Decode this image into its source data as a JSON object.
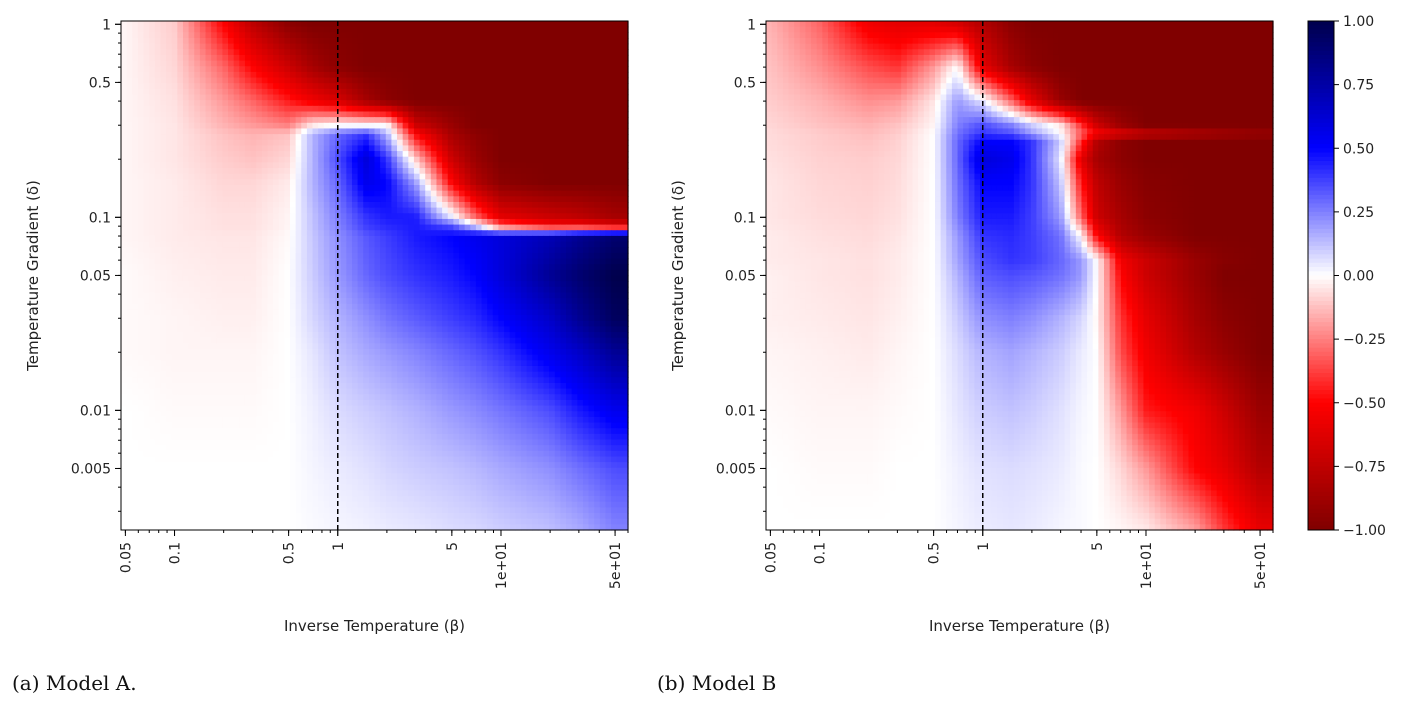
{
  "colormap": {
    "name": "seismic_r",
    "vmin": -1,
    "vmax": 1,
    "stops": [
      [
        -1,
        "#800000"
      ],
      [
        -0.5,
        "#ff0000"
      ],
      [
        0,
        "#ffffff"
      ],
      [
        0.5,
        "#0000ff"
      ],
      [
        1,
        "#00004c"
      ]
    ],
    "ticks": [
      1.0,
      0.75,
      0.5,
      0.25,
      0.0,
      -0.25,
      -0.5,
      -0.75,
      -1.0
    ],
    "tick_labels": [
      "1.00",
      "0.75",
      "0.50",
      "0.25",
      "0.00",
      "−0.25",
      "−0.50",
      "−0.75",
      "−1.00"
    ]
  },
  "chart_data": [
    {
      "type": "heatmap",
      "caption": "(a) Model A.",
      "xlabel": "Inverse Temperature (β)",
      "ylabel": "Temperature Gradient (δ)",
      "xscale": "log",
      "yscale": "log",
      "xlim": [
        0.047,
        60
      ],
      "ylim": [
        0.0024,
        1.04
      ],
      "xticks": [
        0.05,
        0.1,
        0.5,
        1,
        5,
        10,
        50
      ],
      "xtick_labels": [
        "0.05",
        "0.1",
        "0.5",
        "1",
        "5",
        "1e+01",
        "5e+01"
      ],
      "yticks": [
        1,
        0.5,
        0.1,
        0.05,
        0.01,
        0.005
      ],
      "ytick_labels": [
        "1",
        "0.5",
        "0.1",
        "0.05",
        "0.01",
        "0.005"
      ],
      "vline": {
        "x": 1,
        "style": "dashed",
        "color": "#000000"
      },
      "x": [
        0.05,
        0.1,
        0.2,
        0.3,
        0.5,
        0.7,
        1,
        1.5,
        2,
        3,
        5,
        7,
        10,
        20,
        30,
        50
      ],
      "y": [
        1,
        0.6,
        0.4,
        0.3,
        0.27,
        0.2,
        0.15,
        0.1,
        0.09,
        0.08,
        0.05,
        0.03,
        0.02,
        0.01,
        0.005,
        0.0025
      ],
      "z": [
        [
          -0.02,
          -0.1,
          -0.5,
          -0.75,
          -0.95,
          -1,
          -1,
          -1,
          -1,
          -1,
          -1,
          -1,
          -1,
          -1,
          -1,
          -1
        ],
        [
          -0.02,
          -0.08,
          -0.3,
          -0.5,
          -0.7,
          -0.85,
          -0.95,
          -1,
          -1,
          -1,
          -1,
          -1,
          -1,
          -1,
          -1,
          -1
        ],
        [
          -0.02,
          -0.06,
          -0.2,
          -0.3,
          -0.45,
          -0.55,
          -0.65,
          -0.85,
          -0.95,
          -1,
          -1,
          -1,
          -1,
          -1,
          -1,
          -1
        ],
        [
          -0.02,
          -0.05,
          -0.15,
          -0.2,
          -0.25,
          -0.05,
          0,
          0,
          0,
          -0.7,
          -0.9,
          -1,
          -1,
          -1,
          -1,
          -1
        ],
        [
          -0.02,
          -0.05,
          -0.12,
          -0.15,
          -0.12,
          0.15,
          0.3,
          0.4,
          0.15,
          -0.5,
          -0.85,
          -0.95,
          -1,
          -1,
          -1,
          -1
        ],
        [
          -0.02,
          -0.05,
          -0.1,
          -0.12,
          -0.08,
          0.15,
          0.35,
          0.6,
          0.4,
          -0.1,
          -0.7,
          -0.9,
          -1,
          -1,
          -1,
          -1
        ],
        [
          -0.02,
          -0.04,
          -0.08,
          -0.08,
          -0.04,
          0.15,
          0.3,
          0.55,
          0.5,
          0.2,
          -0.5,
          -0.8,
          -0.95,
          -1,
          -1,
          -1
        ],
        [
          -0.02,
          -0.04,
          -0.06,
          -0.06,
          -0.02,
          0.12,
          0.25,
          0.4,
          0.45,
          0.45,
          0.05,
          -0.3,
          -0.6,
          -0.7,
          -0.75,
          -0.85
        ],
        [
          -0.02,
          -0.04,
          -0.06,
          -0.06,
          -0.02,
          0.12,
          0.24,
          0.38,
          0.42,
          0.45,
          0.35,
          0.1,
          -0.3,
          -0.5,
          -0.5,
          -0.6
        ],
        [
          -0.02,
          -0.04,
          -0.05,
          -0.05,
          -0.01,
          0.11,
          0.22,
          0.33,
          0.38,
          0.45,
          0.5,
          0.55,
          0.6,
          0.7,
          0.8,
          0.9
        ],
        [
          -0.01,
          -0.03,
          -0.04,
          -0.04,
          0,
          0.1,
          0.2,
          0.3,
          0.35,
          0.4,
          0.45,
          0.5,
          0.6,
          0.8,
          0.9,
          1
        ],
        [
          -0.01,
          -0.02,
          -0.03,
          -0.03,
          0,
          0.08,
          0.15,
          0.22,
          0.27,
          0.32,
          0.38,
          0.42,
          0.5,
          0.65,
          0.8,
          0.95
        ],
        [
          -0.01,
          -0.02,
          -0.02,
          -0.02,
          0,
          0.05,
          0.12,
          0.17,
          0.2,
          0.24,
          0.3,
          0.34,
          0.4,
          0.55,
          0.65,
          0.8
        ],
        [
          0,
          -0.01,
          -0.01,
          -0.01,
          0,
          0.03,
          0.07,
          0.1,
          0.12,
          0.15,
          0.2,
          0.23,
          0.27,
          0.35,
          0.45,
          0.55
        ],
        [
          0,
          0,
          0,
          0,
          0,
          0.02,
          0.04,
          0.06,
          0.08,
          0.1,
          0.12,
          0.14,
          0.17,
          0.22,
          0.28,
          0.35
        ],
        [
          0,
          0,
          0,
          0,
          0,
          0.01,
          0.02,
          0.03,
          0.04,
          0.05,
          0.07,
          0.08,
          0.1,
          0.13,
          0.17,
          0.25
        ]
      ]
    },
    {
      "type": "heatmap",
      "caption": "(b) Model B",
      "xlabel": "Inverse Temperature (β)",
      "ylabel": "Temperature Gradient (δ)",
      "xscale": "log",
      "yscale": "log",
      "xlim": [
        0.047,
        60
      ],
      "ylim": [
        0.0024,
        1.04
      ],
      "xticks": [
        0.05,
        0.1,
        0.5,
        1,
        5,
        10,
        50
      ],
      "xtick_labels": [
        "0.05",
        "0.1",
        "0.5",
        "1",
        "5",
        "1e+01",
        "5e+01"
      ],
      "yticks": [
        1,
        0.5,
        0.1,
        0.05,
        0.01,
        0.005
      ],
      "ytick_labels": [
        "1",
        "0.5",
        "0.1",
        "0.05",
        "0.01",
        "0.005"
      ],
      "vline": {
        "x": 1,
        "style": "dashed",
        "color": "#000000"
      },
      "x": [
        0.05,
        0.1,
        0.2,
        0.3,
        0.5,
        0.7,
        1,
        1.5,
        2,
        3,
        4,
        5,
        7,
        10,
        20,
        30,
        50
      ],
      "y": [
        1,
        0.6,
        0.4,
        0.3,
        0.27,
        0.25,
        0.2,
        0.15,
        0.1,
        0.08,
        0.06,
        0.05,
        0.03,
        0.02,
        0.01,
        0.005,
        0.0025
      ],
      "z": [
        [
          -0.15,
          -0.3,
          -0.55,
          -0.6,
          -0.6,
          -0.65,
          -0.8,
          -0.95,
          -1,
          -1,
          -1,
          -1,
          -1,
          -1,
          -1,
          -1,
          -1
        ],
        [
          -0.12,
          -0.22,
          -0.35,
          -0.4,
          -0.2,
          0,
          -0.6,
          -0.85,
          -0.95,
          -1,
          -1,
          -1,
          -1,
          -1,
          -1,
          -1,
          -1
        ],
        [
          -0.1,
          -0.15,
          -0.22,
          -0.2,
          -0.05,
          0.2,
          0.05,
          -0.3,
          -0.6,
          -0.9,
          -1,
          -1,
          -1,
          -1,
          -1,
          -1,
          -1
        ],
        [
          -0.08,
          -0.12,
          -0.15,
          -0.12,
          -0.02,
          0.25,
          0.35,
          0.25,
          0.1,
          -0.05,
          -0.4,
          -0.7,
          -0.9,
          -1,
          -1,
          -1,
          -1
        ],
        [
          -0.07,
          -0.1,
          -0.13,
          -0.1,
          0,
          0.28,
          0.4,
          0.35,
          0.2,
          0,
          -0.3,
          -0.5,
          -0.6,
          -0.7,
          -0.8,
          -0.85,
          -0.9
        ],
        [
          -0.07,
          -0.1,
          -0.12,
          -0.09,
          0,
          0.3,
          0.5,
          0.5,
          0.4,
          0.1,
          -0.4,
          -0.8,
          -0.95,
          -1,
          -1,
          -1,
          -1
        ],
        [
          -0.06,
          -0.09,
          -0.1,
          -0.08,
          0,
          0.3,
          0.6,
          0.55,
          0.4,
          0.05,
          -0.6,
          -0.85,
          -0.95,
          -1,
          -1,
          -1,
          -1
        ],
        [
          -0.05,
          -0.08,
          -0.09,
          -0.07,
          0,
          0.28,
          0.5,
          0.5,
          0.4,
          0.12,
          -0.45,
          -0.75,
          -0.9,
          -0.97,
          -1,
          -1,
          -1
        ],
        [
          -0.05,
          -0.07,
          -0.08,
          -0.06,
          0,
          0.25,
          0.45,
          0.45,
          0.38,
          0.2,
          -0.3,
          -0.7,
          -0.85,
          -0.95,
          -1,
          -1,
          -1
        ],
        [
          -0.04,
          -0.06,
          -0.07,
          -0.05,
          0,
          0.2,
          0.4,
          0.42,
          0.38,
          0.28,
          0,
          -0.5,
          -0.8,
          -0.9,
          -1,
          -1,
          -1
        ],
        [
          -0.04,
          -0.05,
          -0.06,
          -0.04,
          0,
          0.18,
          0.35,
          0.4,
          0.38,
          0.3,
          0.2,
          0,
          -0.55,
          -0.7,
          -0.9,
          -0.97,
          -1
        ],
        [
          -0.03,
          -0.05,
          -0.06,
          -0.04,
          0,
          0.15,
          0.32,
          0.35,
          0.33,
          0.28,
          0.2,
          0,
          -0.5,
          -0.7,
          -0.9,
          -1,
          -1
        ],
        [
          -0.03,
          -0.04,
          -0.05,
          -0.03,
          0,
          0.1,
          0.22,
          0.25,
          0.22,
          0.15,
          0.08,
          -0.02,
          -0.4,
          -0.6,
          -0.85,
          -0.95,
          -1
        ],
        [
          -0.02,
          -0.03,
          -0.04,
          -0.02,
          0,
          0.07,
          0.15,
          0.18,
          0.15,
          0.1,
          0.04,
          0,
          -0.35,
          -0.55,
          -0.8,
          -0.9,
          -1
        ],
        [
          -0.01,
          -0.02,
          -0.02,
          -0.01,
          0,
          0.05,
          0.1,
          0.12,
          0.1,
          0.06,
          0.02,
          0,
          -0.2,
          -0.45,
          -0.55,
          -0.7,
          -0.9
        ],
        [
          0,
          -0.01,
          -0.01,
          0,
          0,
          0.03,
          0.06,
          0.07,
          0.06,
          0.04,
          0.01,
          0,
          -0.08,
          -0.2,
          -0.5,
          -0.6,
          -0.8
        ],
        [
          0,
          0,
          0,
          0,
          0,
          0.02,
          0.04,
          0.05,
          0.04,
          0.02,
          0.01,
          0,
          -0.02,
          -0.05,
          -0.2,
          -0.4,
          -0.6
        ]
      ]
    }
  ]
}
